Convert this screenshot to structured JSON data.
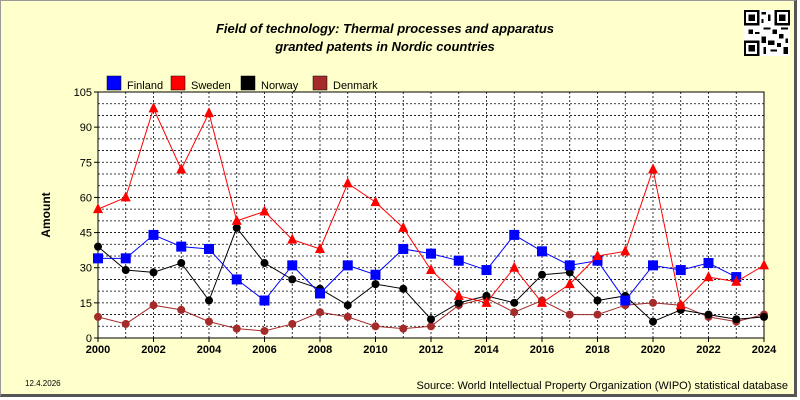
{
  "title_line1": "Field of technology: Thermal processes and apparatus",
  "title_line2": "granted patents in Nordic countries",
  "footer_date": "12.4.2026",
  "footer_source": "Source: World Intellectual Property Organization (WIPO) statistical database",
  "chart_data": {
    "type": "line",
    "ylabel": "Amount",
    "xlabel": "",
    "ylim": [
      0,
      105
    ],
    "yticks": [
      0,
      15,
      30,
      45,
      60,
      75,
      90,
      105
    ],
    "xlim": [
      2000,
      2024
    ],
    "xticks": [
      2000,
      2002,
      2004,
      2006,
      2008,
      2010,
      2012,
      2014,
      2016,
      2018,
      2020,
      2022,
      2024
    ],
    "grid": true,
    "legend_position": "top-left",
    "x": [
      2000,
      2001,
      2002,
      2003,
      2004,
      2005,
      2006,
      2007,
      2008,
      2009,
      2010,
      2011,
      2012,
      2013,
      2014,
      2015,
      2016,
      2017,
      2018,
      2019,
      2020,
      2021,
      2022,
      2023,
      2024
    ],
    "series": [
      {
        "name": "Finland",
        "color": "#0000ff",
        "marker": "square",
        "values": [
          34,
          34,
          44,
          39,
          38,
          25,
          16,
          31,
          19,
          31,
          27,
          38,
          36,
          33,
          29,
          44,
          37,
          31,
          33,
          16,
          31,
          29,
          32,
          26,
          null
        ]
      },
      {
        "name": "Sweden",
        "color": "#ff0000",
        "marker": "triangle",
        "values": [
          55,
          60,
          98,
          72,
          96,
          50,
          54,
          42,
          38,
          66,
          58,
          47,
          29,
          18,
          15,
          30,
          15,
          23,
          35,
          37,
          72,
          14,
          26,
          24,
          31
        ]
      },
      {
        "name": "Norway",
        "color": "#000000",
        "marker": "circle",
        "values": [
          39,
          29,
          28,
          32,
          16,
          47,
          32,
          25,
          21,
          14,
          23,
          21,
          8,
          15,
          18,
          15,
          27,
          28,
          16,
          18,
          7,
          12,
          10,
          8,
          9
        ]
      },
      {
        "name": "Denmark",
        "color": "#a52a2a",
        "marker": "circle",
        "values": [
          9,
          6,
          14,
          12,
          7,
          4,
          3,
          6,
          11,
          9,
          5,
          4,
          5,
          14,
          17,
          11,
          16,
          10,
          10,
          14,
          15,
          14,
          9,
          7,
          10
        ]
      }
    ]
  }
}
